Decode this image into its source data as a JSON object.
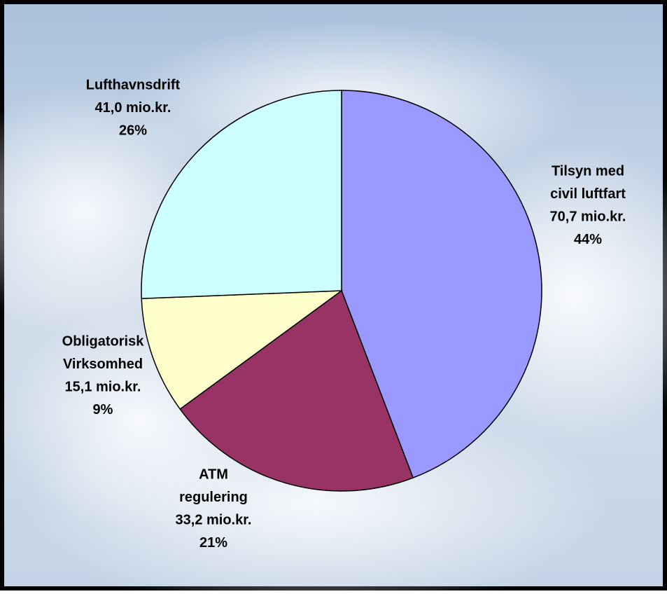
{
  "chart_data": {
    "type": "pie",
    "categories": [
      [
        "Tilsyn med",
        "civil luftfart"
      ],
      [
        "ATM",
        "regulering"
      ],
      [
        "Obligatorisk",
        "Virksomhed"
      ],
      [
        "Lufthavnsdrift"
      ]
    ],
    "values": [
      70.7,
      33.2,
      15.1,
      41.0
    ],
    "value_labels": [
      "70,7 mio.kr.",
      "33,2 mio.kr.",
      "15,1 mio.kr.",
      "41,0 mio.kr."
    ],
    "percents": [
      44,
      21,
      9,
      26
    ],
    "percent_labels": [
      "44%",
      "21%",
      "9%",
      "26%"
    ],
    "colors": [
      "#9999ff",
      "#993366",
      "#ffffcc",
      "#ccffff"
    ]
  }
}
